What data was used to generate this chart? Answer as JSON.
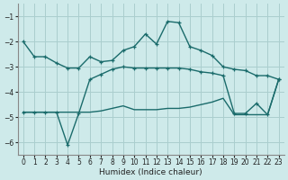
{
  "xlabel": "Humidex (Indice chaleur)",
  "bg_color": "#ceeaea",
  "grid_color": "#aacece",
  "line_color": "#1a6b6b",
  "xlim": [
    -0.5,
    23.5
  ],
  "ylim": [
    -6.5,
    -0.5
  ],
  "yticks": [
    -6,
    -5,
    -4,
    -3,
    -2,
    -1
  ],
  "xticks": [
    0,
    1,
    2,
    3,
    4,
    5,
    6,
    7,
    8,
    9,
    10,
    11,
    12,
    13,
    14,
    15,
    16,
    17,
    18,
    19,
    20,
    21,
    22,
    23
  ],
  "line1_x": [
    0,
    1,
    2,
    3,
    4,
    5,
    6,
    7,
    8,
    9,
    10,
    11,
    12,
    13,
    14,
    15,
    16,
    17,
    18,
    19,
    20,
    21,
    22,
    23
  ],
  "line1_y": [
    -2.0,
    -2.6,
    -2.6,
    -2.85,
    -3.05,
    -3.05,
    -2.6,
    -2.8,
    -2.75,
    -2.35,
    -2.2,
    -1.7,
    -2.1,
    -1.2,
    -1.25,
    -2.2,
    -2.35,
    -2.55,
    -3.0,
    -3.1,
    -3.15,
    -3.35,
    -3.35,
    -3.5
  ],
  "line2_x": [
    0,
    1,
    2,
    3,
    4,
    5,
    6,
    7,
    8,
    9,
    10,
    11,
    12,
    13,
    14,
    15,
    16,
    17,
    18,
    19,
    20,
    21,
    22,
    23
  ],
  "line2_y": [
    -4.8,
    -4.8,
    -4.8,
    -4.8,
    -6.1,
    -4.85,
    -3.5,
    -3.3,
    -3.1,
    -3.0,
    -3.05,
    -3.05,
    -3.05,
    -3.05,
    -3.05,
    -3.1,
    -3.2,
    -3.25,
    -3.35,
    -4.85,
    -4.85,
    -4.45,
    -4.9,
    -3.5
  ],
  "line3_x": [
    0,
    1,
    2,
    3,
    4,
    5,
    6,
    7,
    8,
    9,
    10,
    11,
    12,
    13,
    14,
    15,
    16,
    17,
    18,
    19,
    20,
    21,
    22,
    23
  ],
  "line3_y": [
    -4.8,
    -4.8,
    -4.8,
    -4.8,
    -4.8,
    -4.8,
    -4.8,
    -4.75,
    -4.65,
    -4.55,
    -4.7,
    -4.7,
    -4.7,
    -4.65,
    -4.65,
    -4.6,
    -4.5,
    -4.4,
    -4.25,
    -4.9,
    -4.9,
    -4.9,
    -4.9,
    -3.5
  ]
}
